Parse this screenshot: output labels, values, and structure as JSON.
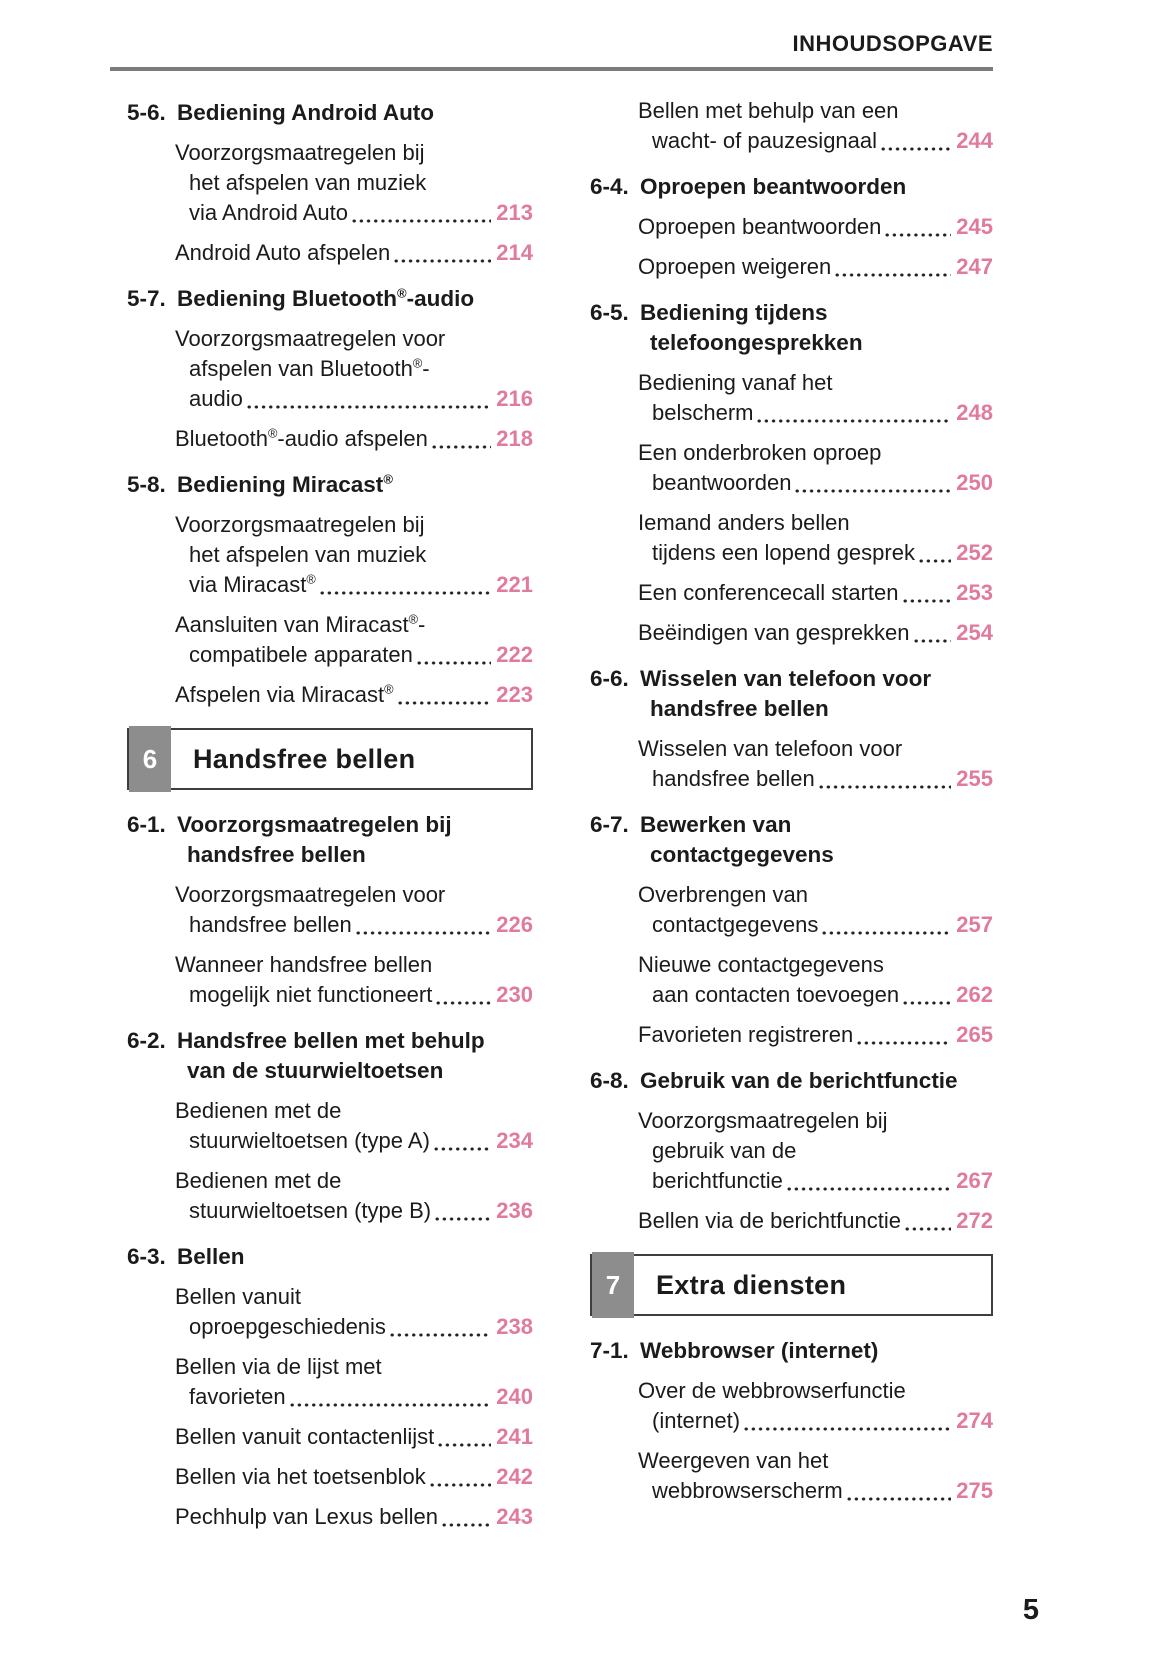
{
  "header": {
    "title": "INHOUDSOPGAVE"
  },
  "footer": {
    "page_number": "5"
  },
  "colors": {
    "page_ref_pink": "#e07b9e",
    "rule_gray": "#7b7b7b",
    "chapter_tab_gray": "#8d8d8d",
    "text_black": "#1b1b1b"
  },
  "columns": [
    {
      "blocks": [
        {
          "type": "section",
          "num": "5-6.",
          "title": [
            "Bediening Android Auto"
          ]
        },
        {
          "type": "entry",
          "lines": [
            "Voorzorgsmaatregelen bij",
            "het afspelen van muziek",
            "via Android Auto"
          ],
          "page": "213"
        },
        {
          "type": "entry",
          "lines": [
            "Android Auto afspelen"
          ],
          "page": "214"
        },
        {
          "type": "section",
          "num": "5-7.",
          "title": [
            "Bediening Bluetooth®-audio"
          ]
        },
        {
          "type": "entry",
          "lines": [
            "Voorzorgsmaatregelen voor",
            "afspelen van Bluetooth®-",
            "audio"
          ],
          "page": "216"
        },
        {
          "type": "entry",
          "lines": [
            "Bluetooth®-audio afspelen"
          ],
          "page": "218"
        },
        {
          "type": "section",
          "num": "5-8.",
          "title": [
            "Bediening Miracast®"
          ]
        },
        {
          "type": "entry",
          "lines": [
            "Voorzorgsmaatregelen bij",
            "het afspelen van muziek",
            "via Miracast®"
          ],
          "page": "221"
        },
        {
          "type": "entry",
          "lines": [
            "Aansluiten van Miracast®-",
            "compatibele apparaten"
          ],
          "page": "222"
        },
        {
          "type": "entry",
          "lines": [
            "Afspelen via Miracast®"
          ],
          "page": "223"
        },
        {
          "type": "chapter",
          "num": "6",
          "title": "Handsfree bellen"
        },
        {
          "type": "section",
          "num": "6-1.",
          "title": [
            "Voorzorgsmaatregelen bij",
            "handsfree bellen"
          ]
        },
        {
          "type": "entry",
          "lines": [
            "Voorzorgsmaatregelen voor",
            "handsfree bellen"
          ],
          "page": "226"
        },
        {
          "type": "entry",
          "lines": [
            "Wanneer handsfree bellen",
            "mogelijk niet functioneert"
          ],
          "page": "230"
        },
        {
          "type": "section",
          "num": "6-2.",
          "title": [
            "Handsfree bellen met behulp",
            "van de stuurwieltoetsen"
          ]
        },
        {
          "type": "entry",
          "lines": [
            "Bedienen met de",
            "stuurwieltoetsen (type A)"
          ],
          "page": "234"
        },
        {
          "type": "entry",
          "lines": [
            "Bedienen met de",
            "stuurwieltoetsen (type B)"
          ],
          "page": "236"
        },
        {
          "type": "section",
          "num": "6-3.",
          "title": [
            "Bellen"
          ]
        },
        {
          "type": "entry",
          "lines": [
            "Bellen vanuit",
            "oproepgeschiedenis"
          ],
          "page": "238"
        },
        {
          "type": "entry",
          "lines": [
            "Bellen via de lijst met",
            "favorieten"
          ],
          "page": "240"
        },
        {
          "type": "entry",
          "lines": [
            "Bellen vanuit contactenlijst"
          ],
          "page": "241"
        },
        {
          "type": "entry",
          "lines": [
            "Bellen via het toetsenblok"
          ],
          "page": "242"
        },
        {
          "type": "entry",
          "lines": [
            "Pechhulp van Lexus bellen"
          ],
          "page": "243"
        }
      ]
    },
    {
      "blocks": [
        {
          "type": "entry",
          "lines": [
            "Bellen met behulp van een",
            "wacht- of pauzesignaal"
          ],
          "page": "244"
        },
        {
          "type": "section",
          "num": "6-4.",
          "title": [
            "Oproepen beantwoorden"
          ]
        },
        {
          "type": "entry",
          "lines": [
            "Oproepen beantwoorden"
          ],
          "page": "245"
        },
        {
          "type": "entry",
          "lines": [
            "Oproepen weigeren"
          ],
          "page": "247"
        },
        {
          "type": "section",
          "num": "6-5.",
          "title": [
            "Bediening tijdens",
            "telefoongesprekken"
          ]
        },
        {
          "type": "entry",
          "lines": [
            "Bediening vanaf het",
            "belscherm"
          ],
          "page": "248"
        },
        {
          "type": "entry",
          "lines": [
            "Een onderbroken oproep",
            "beantwoorden"
          ],
          "page": "250"
        },
        {
          "type": "entry",
          "lines": [
            "Iemand anders bellen",
            "tijdens een lopend gesprek"
          ],
          "page": "252"
        },
        {
          "type": "entry",
          "lines": [
            "Een conferencecall starten"
          ],
          "page": "253"
        },
        {
          "type": "entry",
          "lines": [
            "Beëindigen van gesprekken"
          ],
          "page": "254"
        },
        {
          "type": "section",
          "num": "6-6.",
          "title": [
            "Wisselen van telefoon voor",
            "handsfree bellen"
          ]
        },
        {
          "type": "entry",
          "lines": [
            "Wisselen van telefoon voor",
            "handsfree bellen"
          ],
          "page": "255"
        },
        {
          "type": "section",
          "num": "6-7.",
          "title": [
            "Bewerken van",
            "contactgegevens"
          ]
        },
        {
          "type": "entry",
          "lines": [
            "Overbrengen van",
            "contactgegevens"
          ],
          "page": "257"
        },
        {
          "type": "entry",
          "lines": [
            "Nieuwe contactgegevens",
            "aan contacten toevoegen"
          ],
          "page": "262"
        },
        {
          "type": "entry",
          "lines": [
            "Favorieten registreren"
          ],
          "page": "265"
        },
        {
          "type": "section",
          "num": "6-8.",
          "title": [
            "Gebruik van de berichtfunctie"
          ]
        },
        {
          "type": "entry",
          "lines": [
            "Voorzorgsmaatregelen bij",
            "gebruik van de",
            "berichtfunctie"
          ],
          "page": "267"
        },
        {
          "type": "entry",
          "lines": [
            "Bellen via de berichtfunctie"
          ],
          "page": "272"
        },
        {
          "type": "chapter",
          "num": "7",
          "title": "Extra diensten"
        },
        {
          "type": "section",
          "num": "7-1.",
          "title": [
            "Webbrowser (internet)"
          ]
        },
        {
          "type": "entry",
          "lines": [
            "Over de webbrowserfunctie",
            "(internet)"
          ],
          "page": "274"
        },
        {
          "type": "entry",
          "lines": [
            "Weergeven van het",
            "webbrowserscherm"
          ],
          "page": "275"
        }
      ]
    }
  ]
}
